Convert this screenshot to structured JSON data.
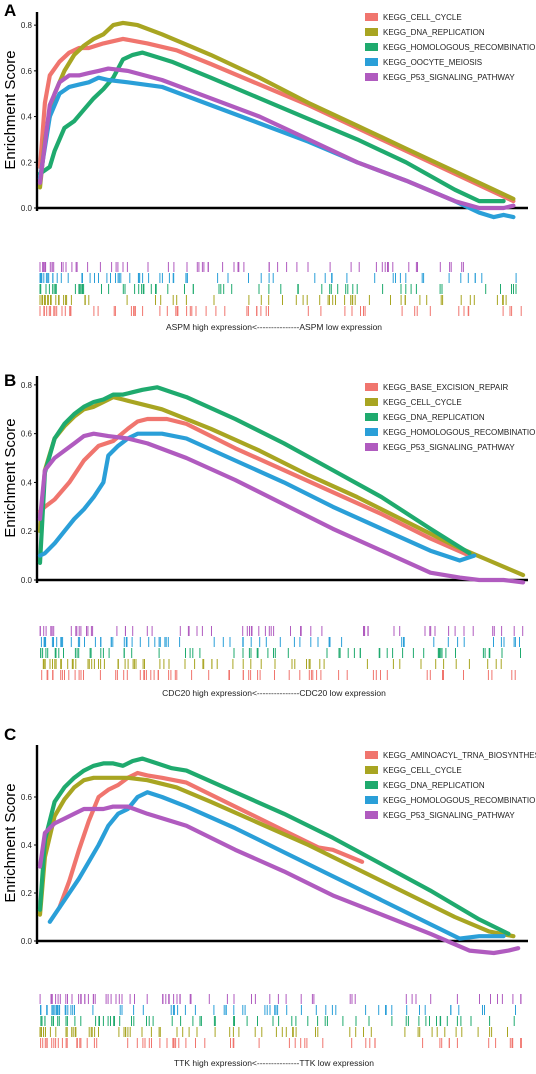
{
  "chart_data": [
    {
      "type": "line",
      "panel_label": "A",
      "ylabel": "Enrichment Score",
      "y_ticks": [
        "0.0",
        "0.2",
        "0.4",
        "0.6",
        "0.8"
      ],
      "ylim": [
        -0.02,
        0.84
      ],
      "xlim": [
        0,
        100
      ],
      "x_annotation": "ASPM high expression<---------------ASPM low expression",
      "legend_position": "top-right",
      "series": [
        {
          "name": "KEGG_CELL_CYCLE",
          "color": "#F0756E",
          "x": [
            0,
            1,
            2,
            4,
            6,
            8,
            10,
            13,
            17,
            22,
            28,
            35,
            45,
            55,
            65,
            75,
            85,
            92,
            97
          ],
          "y": [
            0.18,
            0.46,
            0.58,
            0.64,
            0.68,
            0.7,
            0.7,
            0.72,
            0.74,
            0.72,
            0.69,
            0.63,
            0.54,
            0.45,
            0.35,
            0.25,
            0.15,
            0.08,
            0.03
          ]
        },
        {
          "name": "KEGG_DNA_REPLICATION",
          "color": "#A8A522",
          "x": [
            0,
            1,
            3,
            5,
            7,
            9,
            11,
            13,
            15,
            17,
            20,
            25,
            35,
            45,
            55,
            65,
            75,
            85,
            93,
            97
          ],
          "y": [
            0.09,
            0.3,
            0.5,
            0.6,
            0.67,
            0.71,
            0.74,
            0.76,
            0.8,
            0.81,
            0.8,
            0.76,
            0.67,
            0.57,
            0.46,
            0.36,
            0.26,
            0.16,
            0.08,
            0.04
          ]
        },
        {
          "name": "KEGG_HOMOLOGOUS_RECOMBINATION",
          "color": "#1FAA6E",
          "x": [
            0,
            2,
            3,
            5,
            7,
            9,
            11,
            13,
            15,
            17,
            19,
            21,
            24,
            27,
            35,
            45,
            55,
            65,
            75,
            85,
            90,
            95
          ],
          "y": [
            0.15,
            0.18,
            0.25,
            0.35,
            0.38,
            0.43,
            0.48,
            0.52,
            0.57,
            0.65,
            0.67,
            0.68,
            0.66,
            0.64,
            0.57,
            0.48,
            0.39,
            0.3,
            0.2,
            0.08,
            0.03,
            0.03
          ]
        },
        {
          "name": "KEGG_OOCYTE_MEIOSIS",
          "color": "#2A9FD8",
          "x": [
            0,
            2,
            4,
            6,
            8,
            10,
            12,
            14,
            18,
            25,
            35,
            45,
            55,
            65,
            75,
            85,
            90,
            93,
            95,
            97
          ],
          "y": [
            0.13,
            0.4,
            0.5,
            0.53,
            0.54,
            0.55,
            0.57,
            0.56,
            0.55,
            0.53,
            0.45,
            0.37,
            0.29,
            0.2,
            0.12,
            0.03,
            -0.02,
            -0.04,
            -0.03,
            -0.04
          ]
        },
        {
          "name": "KEGG_P53_SIGNALING_PATHWAY",
          "color": "#B05BBF",
          "x": [
            0,
            2,
            4,
            6,
            8,
            10,
            12,
            14,
            18,
            25,
            35,
            45,
            55,
            65,
            75,
            85,
            90,
            95,
            97
          ],
          "y": [
            0.11,
            0.45,
            0.55,
            0.58,
            0.58,
            0.59,
            0.6,
            0.61,
            0.6,
            0.56,
            0.48,
            0.4,
            0.3,
            0.2,
            0.12,
            0.03,
            0.0,
            0.0,
            0.01
          ]
        }
      ]
    },
    {
      "type": "line",
      "panel_label": "B",
      "ylabel": "Enrichment Score",
      "y_ticks": [
        "0.0",
        "0.2",
        "0.4",
        "0.6",
        "0.8"
      ],
      "ylim": [
        -0.02,
        0.82
      ],
      "xlim": [
        0,
        100
      ],
      "x_annotation": "CDC20 high expression<---------------CDC20 low expression",
      "legend_position": "top-right",
      "series": [
        {
          "name": "KEGG_BASE_EXCISION_REPAIR",
          "color": "#F0756E",
          "x": [
            0,
            1,
            3,
            6,
            9,
            12,
            15,
            18,
            20,
            22,
            26,
            30,
            40,
            50,
            60,
            70,
            80,
            88
          ],
          "y": [
            0.28,
            0.3,
            0.33,
            0.4,
            0.49,
            0.55,
            0.57,
            0.62,
            0.65,
            0.66,
            0.66,
            0.64,
            0.54,
            0.45,
            0.36,
            0.27,
            0.17,
            0.1
          ]
        },
        {
          "name": "KEGG_CELL_CYCLE",
          "color": "#A8A522",
          "x": [
            0,
            1,
            3,
            5,
            7,
            9,
            11,
            13,
            15,
            17,
            19,
            21,
            25,
            35,
            45,
            55,
            65,
            75,
            85,
            92,
            99
          ],
          "y": [
            0.2,
            0.45,
            0.58,
            0.63,
            0.67,
            0.7,
            0.71,
            0.73,
            0.75,
            0.74,
            0.73,
            0.72,
            0.7,
            0.62,
            0.53,
            0.43,
            0.34,
            0.24,
            0.14,
            0.08,
            0.02
          ]
        },
        {
          "name": "KEGG_DNA_REPLICATION",
          "color": "#1FAA6E",
          "x": [
            0,
            1,
            3,
            5,
            7,
            9,
            11,
            13,
            15,
            17,
            19,
            21,
            24,
            27,
            30,
            40,
            50,
            60,
            70,
            80,
            88
          ],
          "y": [
            0.07,
            0.44,
            0.58,
            0.64,
            0.68,
            0.71,
            0.73,
            0.74,
            0.76,
            0.76,
            0.77,
            0.78,
            0.79,
            0.77,
            0.75,
            0.66,
            0.56,
            0.45,
            0.34,
            0.21,
            0.11
          ]
        },
        {
          "name": "KEGG_HOMOLOGOUS_RECOMBINATION",
          "color": "#2A9FD8",
          "x": [
            0,
            1,
            3,
            5,
            7,
            9,
            11,
            13,
            14,
            16,
            18,
            20,
            25,
            30,
            40,
            50,
            60,
            70,
            80,
            86,
            89
          ],
          "y": [
            0.1,
            0.11,
            0.15,
            0.2,
            0.25,
            0.29,
            0.34,
            0.4,
            0.51,
            0.55,
            0.58,
            0.6,
            0.6,
            0.58,
            0.49,
            0.4,
            0.3,
            0.21,
            0.12,
            0.08,
            0.1
          ]
        },
        {
          "name": "KEGG_P53_SIGNALING_PATHWAY",
          "color": "#B05BBF",
          "x": [
            0,
            1,
            3,
            5,
            7,
            9,
            11,
            14,
            18,
            22,
            30,
            40,
            50,
            60,
            70,
            80,
            86,
            90,
            95,
            99
          ],
          "y": [
            0.25,
            0.45,
            0.5,
            0.53,
            0.56,
            0.59,
            0.6,
            0.59,
            0.58,
            0.56,
            0.5,
            0.41,
            0.31,
            0.21,
            0.12,
            0.03,
            0.01,
            0.0,
            0.0,
            -0.01
          ]
        }
      ]
    },
    {
      "type": "line",
      "panel_label": "C",
      "ylabel": "Enrichment Score",
      "y_ticks": [
        "0.0",
        "0.2",
        "0.4",
        "0.6"
      ],
      "ylim": [
        -0.02,
        0.8
      ],
      "xlim": [
        0,
        100
      ],
      "x_annotation": "TTK high expression<---------------TTK low expression",
      "legend_position": "top-right",
      "series": [
        {
          "name": "KEGG_AMINOACYL_TRNA_BIOSYNTHESIS",
          "color": "#F0756E",
          "x": [
            4,
            6,
            8,
            10,
            12,
            14,
            16,
            18,
            20,
            22,
            25,
            30,
            40,
            50,
            57,
            60,
            66
          ],
          "y": [
            0.14,
            0.25,
            0.38,
            0.5,
            0.6,
            0.63,
            0.65,
            0.68,
            0.7,
            0.69,
            0.68,
            0.66,
            0.56,
            0.46,
            0.39,
            0.38,
            0.33
          ]
        },
        {
          "name": "KEGG_CELL_CYCLE",
          "color": "#A8A522",
          "x": [
            0,
            1,
            3,
            5,
            7,
            9,
            11,
            14,
            18,
            22,
            28,
            35,
            45,
            55,
            65,
            75,
            85,
            92,
            97
          ],
          "y": [
            0.11,
            0.35,
            0.52,
            0.59,
            0.64,
            0.67,
            0.68,
            0.68,
            0.68,
            0.67,
            0.64,
            0.58,
            0.49,
            0.4,
            0.3,
            0.2,
            0.1,
            0.04,
            0.02
          ]
        },
        {
          "name": "KEGG_DNA_REPLICATION",
          "color": "#1FAA6E",
          "x": [
            0,
            1,
            3,
            5,
            7,
            9,
            11,
            13,
            15,
            17,
            19,
            21,
            24,
            27,
            30,
            40,
            50,
            60,
            70,
            80,
            90,
            96
          ],
          "y": [
            0.13,
            0.42,
            0.58,
            0.64,
            0.68,
            0.71,
            0.73,
            0.74,
            0.74,
            0.73,
            0.75,
            0.76,
            0.74,
            0.72,
            0.71,
            0.62,
            0.53,
            0.43,
            0.32,
            0.21,
            0.09,
            0.03
          ]
        },
        {
          "name": "KEGG_HOMOLOGOUS_RECOMBINATION",
          "color": "#2A9FD8",
          "x": [
            2,
            4,
            6,
            8,
            10,
            12,
            14,
            16,
            18,
            20,
            22,
            25,
            30,
            40,
            50,
            60,
            70,
            80,
            86,
            90,
            95
          ],
          "y": [
            0.08,
            0.14,
            0.2,
            0.26,
            0.33,
            0.4,
            0.48,
            0.53,
            0.55,
            0.6,
            0.62,
            0.6,
            0.56,
            0.47,
            0.37,
            0.27,
            0.17,
            0.07,
            0.01,
            0.02,
            0.02
          ]
        },
        {
          "name": "KEGG_P53_SIGNALING_PATHWAY",
          "color": "#B05BBF",
          "x": [
            0,
            1,
            3,
            5,
            7,
            9,
            11,
            13,
            15,
            18,
            22,
            30,
            40,
            50,
            60,
            70,
            80,
            88,
            93,
            96,
            98
          ],
          "y": [
            0.31,
            0.45,
            0.49,
            0.51,
            0.53,
            0.55,
            0.55,
            0.55,
            0.56,
            0.56,
            0.53,
            0.48,
            0.38,
            0.29,
            0.19,
            0.11,
            0.03,
            -0.04,
            -0.05,
            -0.04,
            -0.03
          ]
        }
      ]
    }
  ]
}
